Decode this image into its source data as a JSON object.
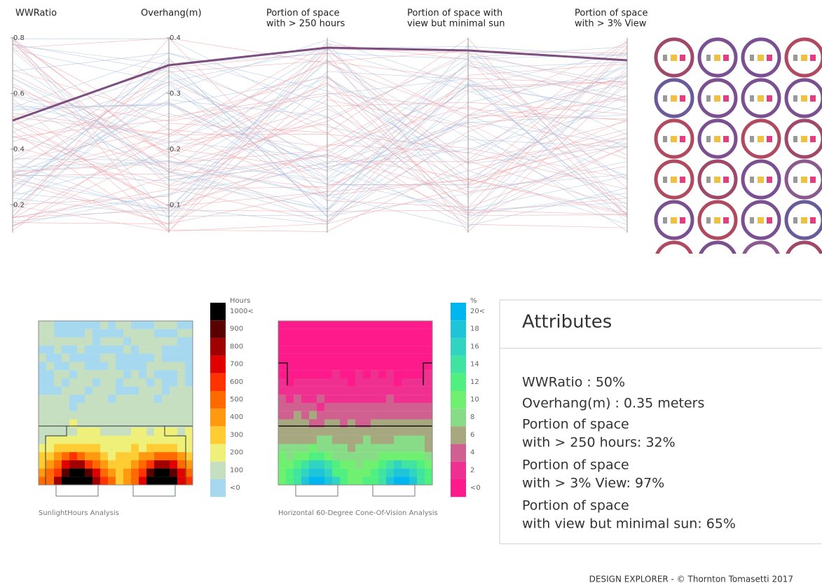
{
  "parallel_coordinates": {
    "axes": [
      {
        "label": [
          "WWRatio"
        ],
        "ylim": [
          0.1,
          0.8
        ],
        "yticks": [
          0.8,
          0.6,
          0.4,
          0.2
        ]
      },
      {
        "label": [
          "Overhang(m)"
        ],
        "ylim": [
          0.05,
          0.4
        ],
        "yticks": [
          0.4,
          0.3,
          0.2,
          0.1
        ]
      },
      {
        "label": [
          "Portion of space",
          "with > 250 hours"
        ]
      },
      {
        "label": [
          "Portion of space with",
          "view but minimal sun"
        ]
      },
      {
        "label": [
          "Portion of space",
          "with > 3% View"
        ]
      }
    ]
  },
  "sunlight_analysis": {
    "legend_title": "Hours",
    "legend_labels": [
      "1000<",
      "900",
      "800",
      "700",
      "600",
      "500",
      "400",
      "300",
      "200",
      "100",
      "<0"
    ],
    "caption": "SunlightHours Analysis"
  },
  "view_analysis": {
    "legend_title": "%",
    "legend_labels": [
      "20<",
      "18",
      "16",
      "14",
      "12",
      "10",
      "8",
      "6",
      "4",
      "2",
      "<0"
    ],
    "caption": "Horizontal 60-Degree Cone-Of-Vision Analysis"
  },
  "attributes": {
    "title": "Attributes",
    "lines": [
      [
        "WWRatio : 50%"
      ],
      [
        "Overhang(m) : 0.35 meters"
      ],
      [
        "Portion of space",
        "with > 250 hours: 32%"
      ],
      [
        "Portion of space",
        "with > 3% View: 97%"
      ],
      [
        "Portion of space",
        "with view but minimal sun: 65%"
      ]
    ]
  },
  "footer": "DESIGN EXPLORER - © Thornton Tomasetti 2017"
}
